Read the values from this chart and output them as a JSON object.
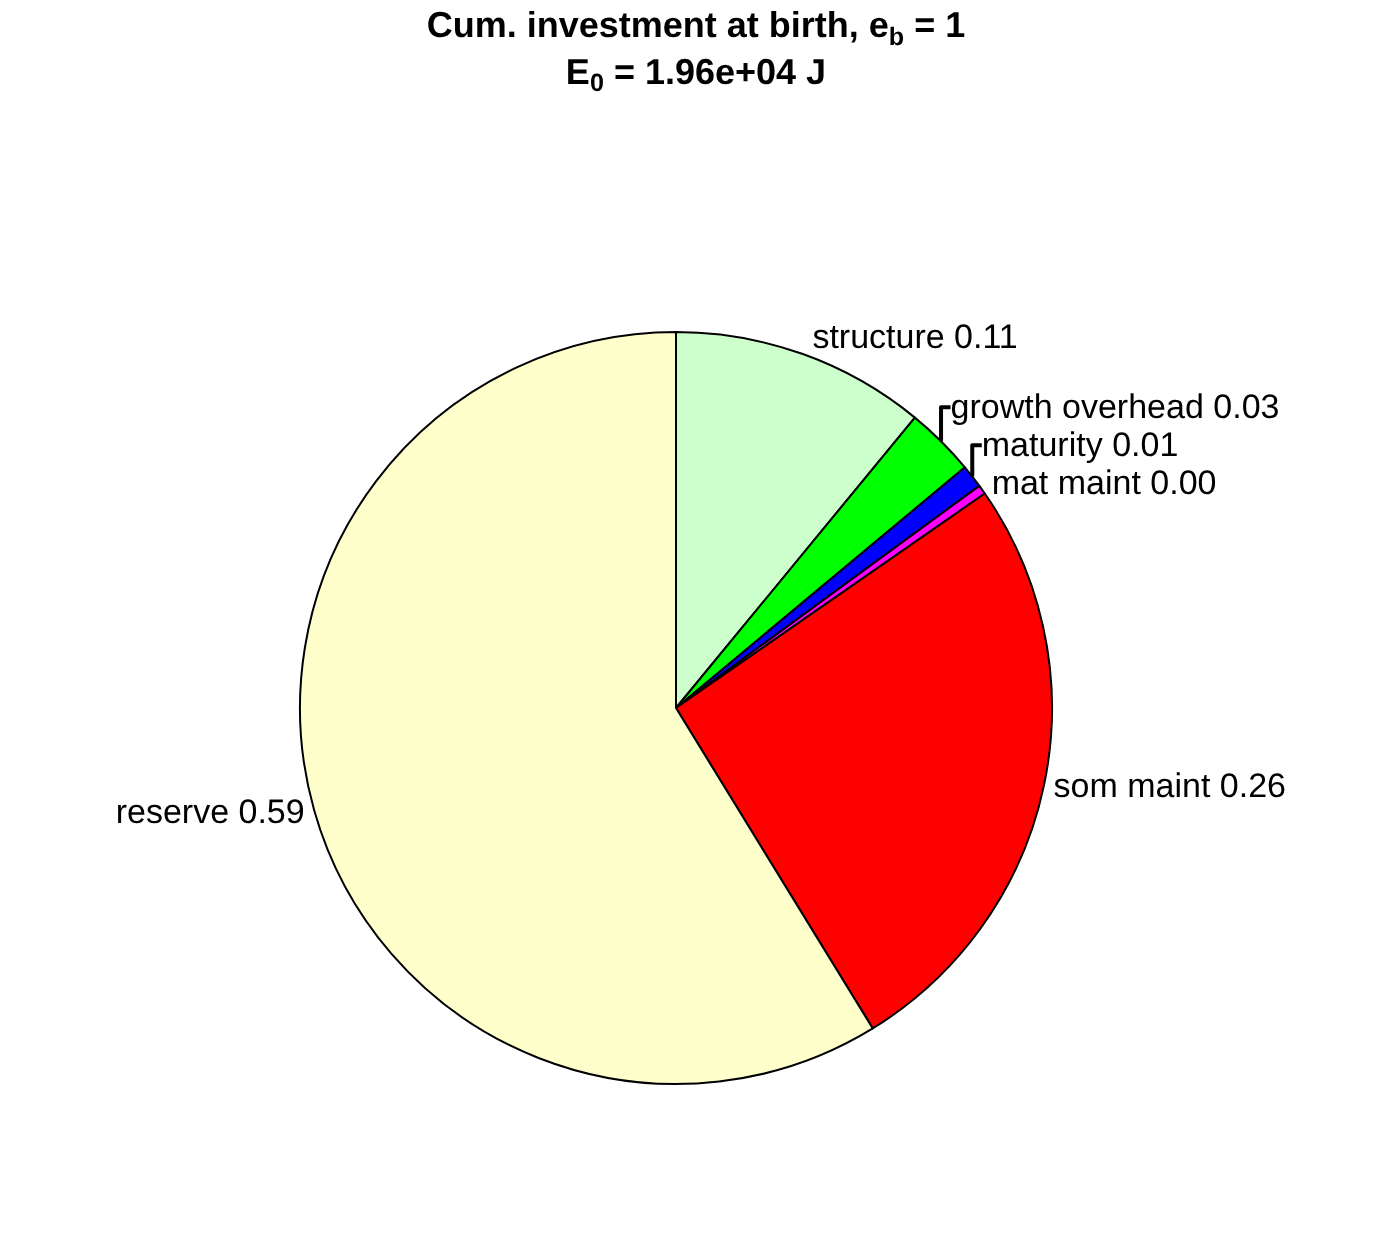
{
  "chart_data": {
    "type": "pie",
    "title": "Cum. investment at birth, e$_{b}$ = 1",
    "subtitle": "E$_{0}$ = 1.96e+04 J",
    "categories": [
      "structure",
      "growth overhead",
      "maturity",
      "mat maint",
      "som maint",
      "reserve"
    ],
    "values": [
      0.11,
      0.03,
      0.01,
      0.004,
      0.26,
      0.59
    ],
    "value_labels": [
      "0.11",
      "0.03",
      "0.01",
      "0.00",
      "0.26",
      "0.59"
    ],
    "colors": [
      "#ccffcc",
      "#00ff00",
      "#0000ff",
      "#ff00ff",
      "#ff0000",
      "#ffffcc"
    ],
    "legend": false
  }
}
